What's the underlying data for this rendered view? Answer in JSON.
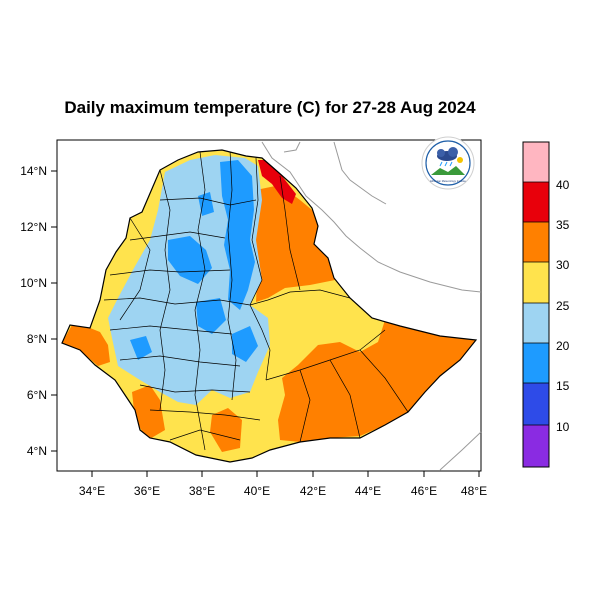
{
  "title": "Daily maximum temperature (C) for 27-28 Aug 2024",
  "axes": {
    "x_ticks": [
      "34°E",
      "36°E",
      "38°E",
      "40°E",
      "42°E",
      "44°E",
      "46°E",
      "48°E"
    ],
    "y_ticks": [
      "14°N",
      "12°N",
      "10°N",
      "8°N",
      "6°N",
      "4°N"
    ],
    "lon_range": [
      33,
      48.2
    ],
    "lat_range": [
      3.2,
      14.9
    ]
  },
  "colorbar": {
    "labels": [
      "40",
      "35",
      "30",
      "25",
      "20",
      "15",
      "10"
    ],
    "bins": [
      {
        "range": "> 40",
        "color": "#ffb6c1"
      },
      {
        "range": "35–40",
        "color": "#e8000b"
      },
      {
        "range": "30–35",
        "color": "#ff8000"
      },
      {
        "range": "25–30",
        "color": "#ffe34d"
      },
      {
        "range": "20–25",
        "color": "#9ed4f2"
      },
      {
        "range": "15–20",
        "color": "#1e9bff"
      },
      {
        "range": "10–15",
        "color": "#2e4be8"
      },
      {
        "range": "< 10",
        "color": "#8a2be2"
      }
    ]
  },
  "logo": {
    "text": "Ethiopian Meteorology Institute"
  },
  "colors": {
    "sea": "#ffffff",
    "border": "#000000",
    "neighbor_border": "#9a9a9a"
  }
}
